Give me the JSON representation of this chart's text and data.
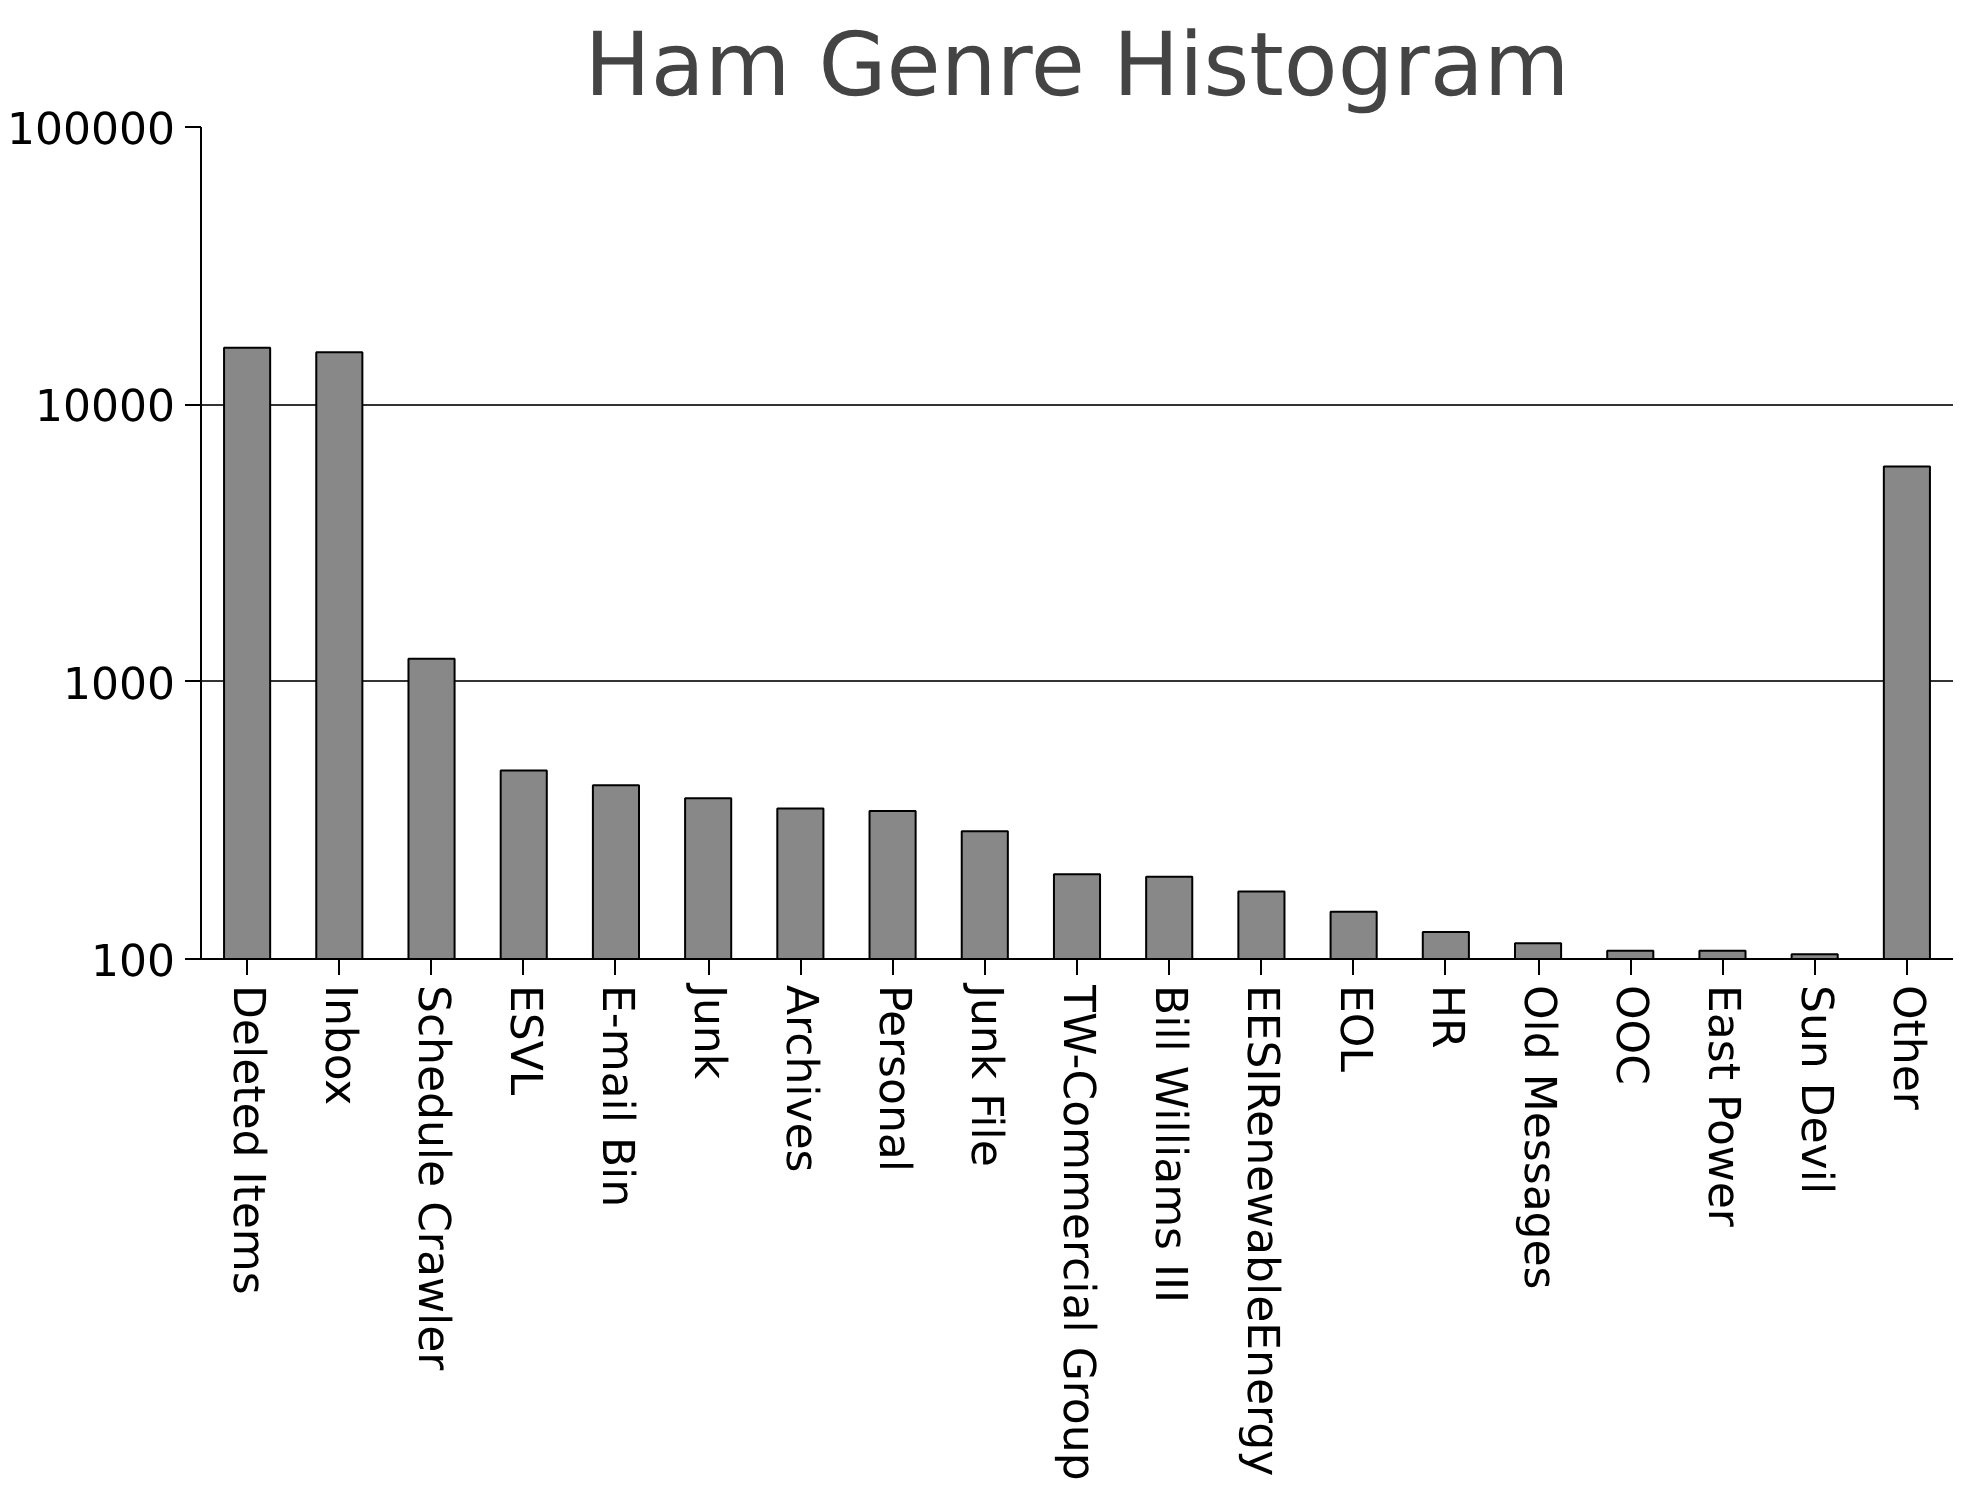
{
  "chart_data": {
    "type": "bar",
    "title": "Ham Genre Histogram",
    "categories": [
      "Deleted Items",
      "Inbox",
      "Schedule Crawler",
      "ESVL",
      "E-mail Bin",
      "Junk",
      "Archives",
      "Personal",
      "Junk File",
      "TW-Commercial Group",
      "Bill Williams III",
      "EESIRenewableEnergy",
      "EOL",
      "HR",
      "Old Messages",
      "OOC",
      "East Power",
      "Sun Devil",
      "Other"
    ],
    "values": [
      16000,
      15400,
      1210,
      478,
      423,
      380,
      349,
      342,
      289,
      202,
      198,
      175,
      148,
      125,
      114,
      107,
      107,
      104,
      5970
    ],
    "color": "#888888",
    "log": true,
    "ylim": [
      100,
      100000
    ],
    "yticks": [
      100,
      1000,
      10000,
      100000
    ],
    "grid": "y"
  }
}
